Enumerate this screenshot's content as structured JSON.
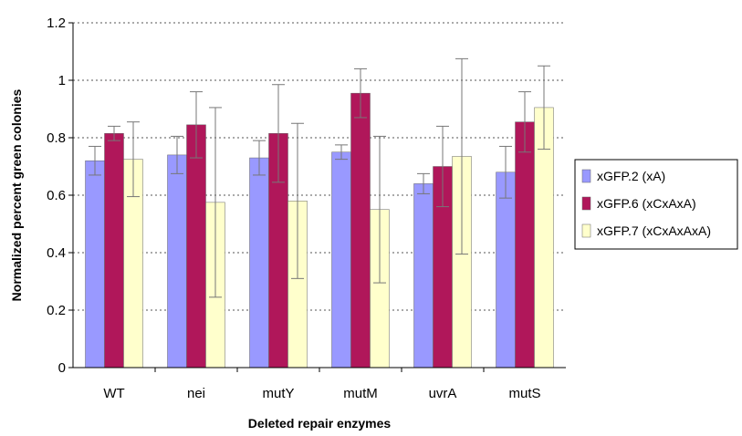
{
  "chart_data": {
    "type": "bar",
    "title": "",
    "xlabel": "Deleted repair enzymes",
    "ylabel": "Normalized percent green colonies",
    "ylim": [
      0,
      1.2
    ],
    "yticks": [
      "0",
      "0.2",
      "0.4",
      "0.6",
      "0.8",
      "1",
      "1.2"
    ],
    "grid": "horizontal dotted",
    "legend_position": "right",
    "categories": [
      "WT",
      "nei",
      "mutY",
      "mutM",
      "uvrA",
      "mutS"
    ],
    "series": [
      {
        "name": "xGFP.2 (xA)",
        "color": "#9999ff",
        "values": [
          0.72,
          0.74,
          0.73,
          0.75,
          0.64,
          0.68
        ],
        "errors": [
          0.05,
          0.065,
          0.06,
          0.025,
          0.035,
          0.09
        ]
      },
      {
        "name": "xGFP.6 (xCxAxA)",
        "color": "#b0175a",
        "values": [
          0.815,
          0.845,
          0.815,
          0.955,
          0.7,
          0.855
        ],
        "errors": [
          0.025,
          0.115,
          0.17,
          0.085,
          0.14,
          0.105
        ]
      },
      {
        "name": "xGFP.7 (xCxAxAxA)",
        "color": "#ffffcc",
        "values": [
          0.725,
          0.575,
          0.58,
          0.55,
          0.735,
          0.905
        ],
        "errors": [
          0.13,
          0.33,
          0.27,
          0.255,
          0.34,
          0.145
        ]
      }
    ]
  }
}
